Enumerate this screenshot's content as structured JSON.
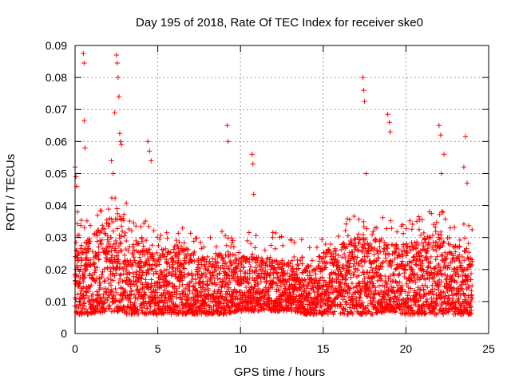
{
  "chart_data": {
    "type": "scatter",
    "title": "Day 195 of 2018, Rate Of TEC Index for receiver ske0",
    "xlabel": "GPS time / hours",
    "ylabel": "ROTI / TECUs",
    "xlim": [
      0,
      25
    ],
    "ylim": [
      0,
      0.09
    ],
    "x_ticks": [
      0,
      5,
      10,
      15,
      20,
      25
    ],
    "x_tick_labels": [
      "0",
      "5",
      "10",
      "15",
      "20",
      "25"
    ],
    "y_ticks": [
      0,
      0.01,
      0.02,
      0.03,
      0.04,
      0.05,
      0.06,
      0.07,
      0.08,
      0.09
    ],
    "y_tick_labels": [
      "0",
      "0.01",
      "0.02",
      "0.03",
      "0.04",
      "0.05",
      "0.06",
      "0.07",
      "0.08",
      "0.09"
    ],
    "grid": true,
    "marker": "plus",
    "color": "#ff0000",
    "x_step": 0.02,
    "band": {
      "x": [
        0,
        1,
        2,
        3,
        4,
        5,
        6,
        7,
        8,
        9,
        10,
        11,
        12,
        13,
        14,
        15,
        16,
        17,
        18,
        19,
        20,
        21,
        22,
        23,
        24
      ],
      "low": [
        0.006,
        0.006,
        0.007,
        0.006,
        0.006,
        0.006,
        0.006,
        0.006,
        0.006,
        0.006,
        0.007,
        0.007,
        0.007,
        0.007,
        0.006,
        0.006,
        0.006,
        0.006,
        0.006,
        0.007,
        0.006,
        0.006,
        0.006,
        0.006,
        0.006
      ],
      "high": [
        0.028,
        0.03,
        0.036,
        0.036,
        0.028,
        0.026,
        0.028,
        0.026,
        0.024,
        0.026,
        0.024,
        0.024,
        0.024,
        0.022,
        0.022,
        0.026,
        0.028,
        0.03,
        0.03,
        0.028,
        0.028,
        0.03,
        0.032,
        0.028,
        0.026
      ]
    },
    "outliers": {
      "x": [
        0.0,
        0.05,
        0.1,
        0.15,
        0.5,
        0.55,
        0.55,
        0.6,
        2.2,
        2.3,
        2.4,
        2.5,
        2.55,
        2.6,
        2.65,
        2.7,
        2.75,
        2.8,
        4.4,
        4.5,
        4.6,
        9.2,
        9.25,
        10.7,
        10.75,
        10.8,
        17.4,
        17.45,
        17.5,
        17.6,
        18.9,
        19.0,
        19.05,
        22.0,
        22.1,
        22.15,
        22.3,
        23.5,
        23.6,
        23.7
      ],
      "y": [
        0.052,
        0.049,
        0.046,
        0.038,
        0.0875,
        0.0845,
        0.0665,
        0.058,
        0.054,
        0.05,
        0.069,
        0.087,
        0.0845,
        0.08,
        0.074,
        0.0625,
        0.06,
        0.059,
        0.06,
        0.057,
        0.054,
        0.065,
        0.06,
        0.056,
        0.053,
        0.0435,
        0.08,
        0.076,
        0.0725,
        0.05,
        0.0685,
        0.066,
        0.063,
        0.065,
        0.062,
        0.05,
        0.056,
        0.052,
        0.0615,
        0.047
      ]
    }
  }
}
